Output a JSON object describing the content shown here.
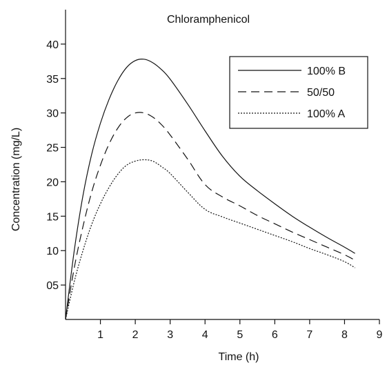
{
  "chart_data": {
    "type": "line",
    "title": "Chloramphenicol",
    "xlabel": "Time (h)",
    "ylabel": "Concentration (mg/L)",
    "xlim": [
      0,
      9
    ],
    "ylim": [
      0,
      45
    ],
    "x_ticks": [
      1,
      2,
      3,
      4,
      5,
      6,
      7,
      8,
      9
    ],
    "x_tick_labels": [
      "1",
      "2",
      "3",
      "4",
      "5",
      "6",
      "7",
      "8",
      "9"
    ],
    "y_ticks": [
      5,
      10,
      15,
      20,
      25,
      30,
      35,
      40
    ],
    "y_tick_labels": [
      "05",
      "10",
      "15",
      "20",
      "25",
      "30",
      "35",
      "40"
    ],
    "grid": false,
    "legend_position": "top-right",
    "series": [
      {
        "name": "100% B",
        "style": "solid",
        "x": [
          0,
          0.25,
          0.5,
          0.75,
          1.0,
          1.25,
          1.5,
          1.75,
          2.0,
          2.25,
          2.5,
          2.75,
          3.0,
          3.5,
          4.0,
          4.5,
          5.0,
          5.5,
          6.0,
          6.5,
          7.0,
          7.5,
          8.0,
          8.3
        ],
        "y": [
          0,
          10,
          18,
          24,
          28.5,
          32,
          34.7,
          36.6,
          37.6,
          37.8,
          37.3,
          36.3,
          34.9,
          31.3,
          27.4,
          23.7,
          20.8,
          18.7,
          16.8,
          15.0,
          13.4,
          11.9,
          10.5,
          9.6
        ]
      },
      {
        "name": "50/50",
        "style": "dashed",
        "x": [
          0,
          0.25,
          0.5,
          0.75,
          1.0,
          1.25,
          1.5,
          1.75,
          2.0,
          2.25,
          2.5,
          2.75,
          3.0,
          3.5,
          4.0,
          4.5,
          5.0,
          5.5,
          6.0,
          6.5,
          7.0,
          7.5,
          8.0,
          8.3
        ],
        "y": [
          0,
          7.5,
          13.5,
          18.5,
          22.4,
          25.5,
          27.8,
          29.3,
          30.0,
          30.0,
          29.4,
          28.3,
          26.8,
          23.3,
          19.6,
          17.8,
          16.5,
          15.1,
          13.9,
          12.7,
          11.6,
          10.5,
          9.4,
          8.6
        ]
      },
      {
        "name": "100% A",
        "style": "dotted",
        "x": [
          0,
          0.25,
          0.5,
          0.75,
          1.0,
          1.25,
          1.5,
          1.75,
          2.0,
          2.25,
          2.5,
          2.75,
          3.0,
          3.5,
          4.0,
          4.5,
          5.0,
          5.5,
          6.0,
          6.5,
          7.0,
          7.5,
          8.0,
          8.3
        ],
        "y": [
          0,
          5.5,
          10,
          13.8,
          16.8,
          19.2,
          21.1,
          22.4,
          23.0,
          23.2,
          23.0,
          22.2,
          21.2,
          18.5,
          16.0,
          14.9,
          14.0,
          13.1,
          12.2,
          11.3,
          10.3,
          9.4,
          8.4,
          7.5
        ]
      }
    ]
  }
}
